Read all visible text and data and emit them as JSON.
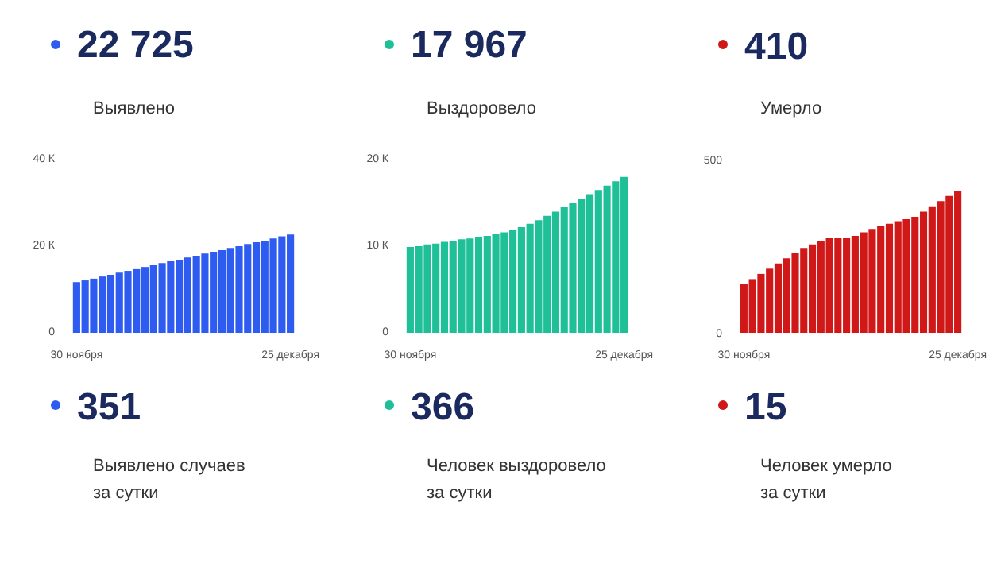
{
  "chart_data": [
    {
      "type": "bar",
      "title": "22 725",
      "subtitle": "Выявлено",
      "color": "#2f5cf0",
      "categories": [
        "30 ноября",
        null,
        null,
        null,
        null,
        null,
        null,
        null,
        null,
        null,
        null,
        null,
        null,
        null,
        null,
        null,
        null,
        null,
        null,
        null,
        null,
        null,
        null,
        null,
        null,
        "25 декабря"
      ],
      "values": [
        11.7,
        12.1,
        12.5,
        13.0,
        13.4,
        13.9,
        14.3,
        14.7,
        15.2,
        15.6,
        16.1,
        16.5,
        16.9,
        17.4,
        17.8,
        18.3,
        18.7,
        19.1,
        19.6,
        20.0,
        20.5,
        20.9,
        21.3,
        21.8,
        22.3,
        22.7
      ],
      "ylim": [
        0,
        40
      ],
      "yticks": [
        0,
        {
          "value": 20,
          "label": "20 К"
        },
        {
          "value": 40,
          "label": "40 К"
        }
      ]
    },
    {
      "type": "bar",
      "title": "17 967",
      "subtitle": "Выздоровело",
      "color": "#1fbf98",
      "categories": [
        "30 ноября",
        null,
        null,
        null,
        null,
        null,
        null,
        null,
        null,
        null,
        null,
        null,
        null,
        null,
        null,
        null,
        null,
        null,
        null,
        null,
        null,
        null,
        null,
        null,
        null,
        "25 декабря"
      ],
      "values": [
        9.9,
        10.0,
        10.2,
        10.3,
        10.5,
        10.6,
        10.8,
        10.9,
        11.1,
        11.2,
        11.4,
        11.6,
        11.9,
        12.2,
        12.6,
        13.0,
        13.5,
        14.0,
        14.5,
        15.0,
        15.5,
        16.0,
        16.5,
        17.0,
        17.5,
        18.0
      ],
      "ylim": [
        0,
        20
      ],
      "yticks": [
        0,
        {
          "value": 10,
          "label": "10 К"
        },
        {
          "value": 20,
          "label": "20 К"
        }
      ]
    },
    {
      "type": "bar",
      "title": "410",
      "subtitle": "Умерло",
      "color": "#d01818",
      "categories": [
        "30 ноября",
        null,
        null,
        null,
        null,
        null,
        null,
        null,
        null,
        null,
        null,
        null,
        null,
        null,
        null,
        null,
        null,
        null,
        null,
        null,
        null,
        null,
        null,
        null,
        null,
        "25 декабря"
      ],
      "values": [
        140,
        155,
        170,
        185,
        200,
        215,
        230,
        245,
        255,
        265,
        275,
        275,
        275,
        280,
        290,
        300,
        308,
        315,
        322,
        328,
        335,
        350,
        365,
        380,
        395,
        410
      ],
      "ylim": [
        0,
        500
      ],
      "yticks": [
        0,
        500
      ]
    },
    {
      "type": "other",
      "title": "351",
      "subtitle": "Выявлено случаев\nза сутки",
      "color": "#2f5cf0"
    },
    {
      "type": "other",
      "title": "366",
      "subtitle": "Человек выздоровело\nза сутки",
      "color": "#1fbf98"
    },
    {
      "type": "other",
      "title": "15",
      "subtitle": "Человек умерло\nза сутки",
      "color": "#d01818"
    }
  ]
}
